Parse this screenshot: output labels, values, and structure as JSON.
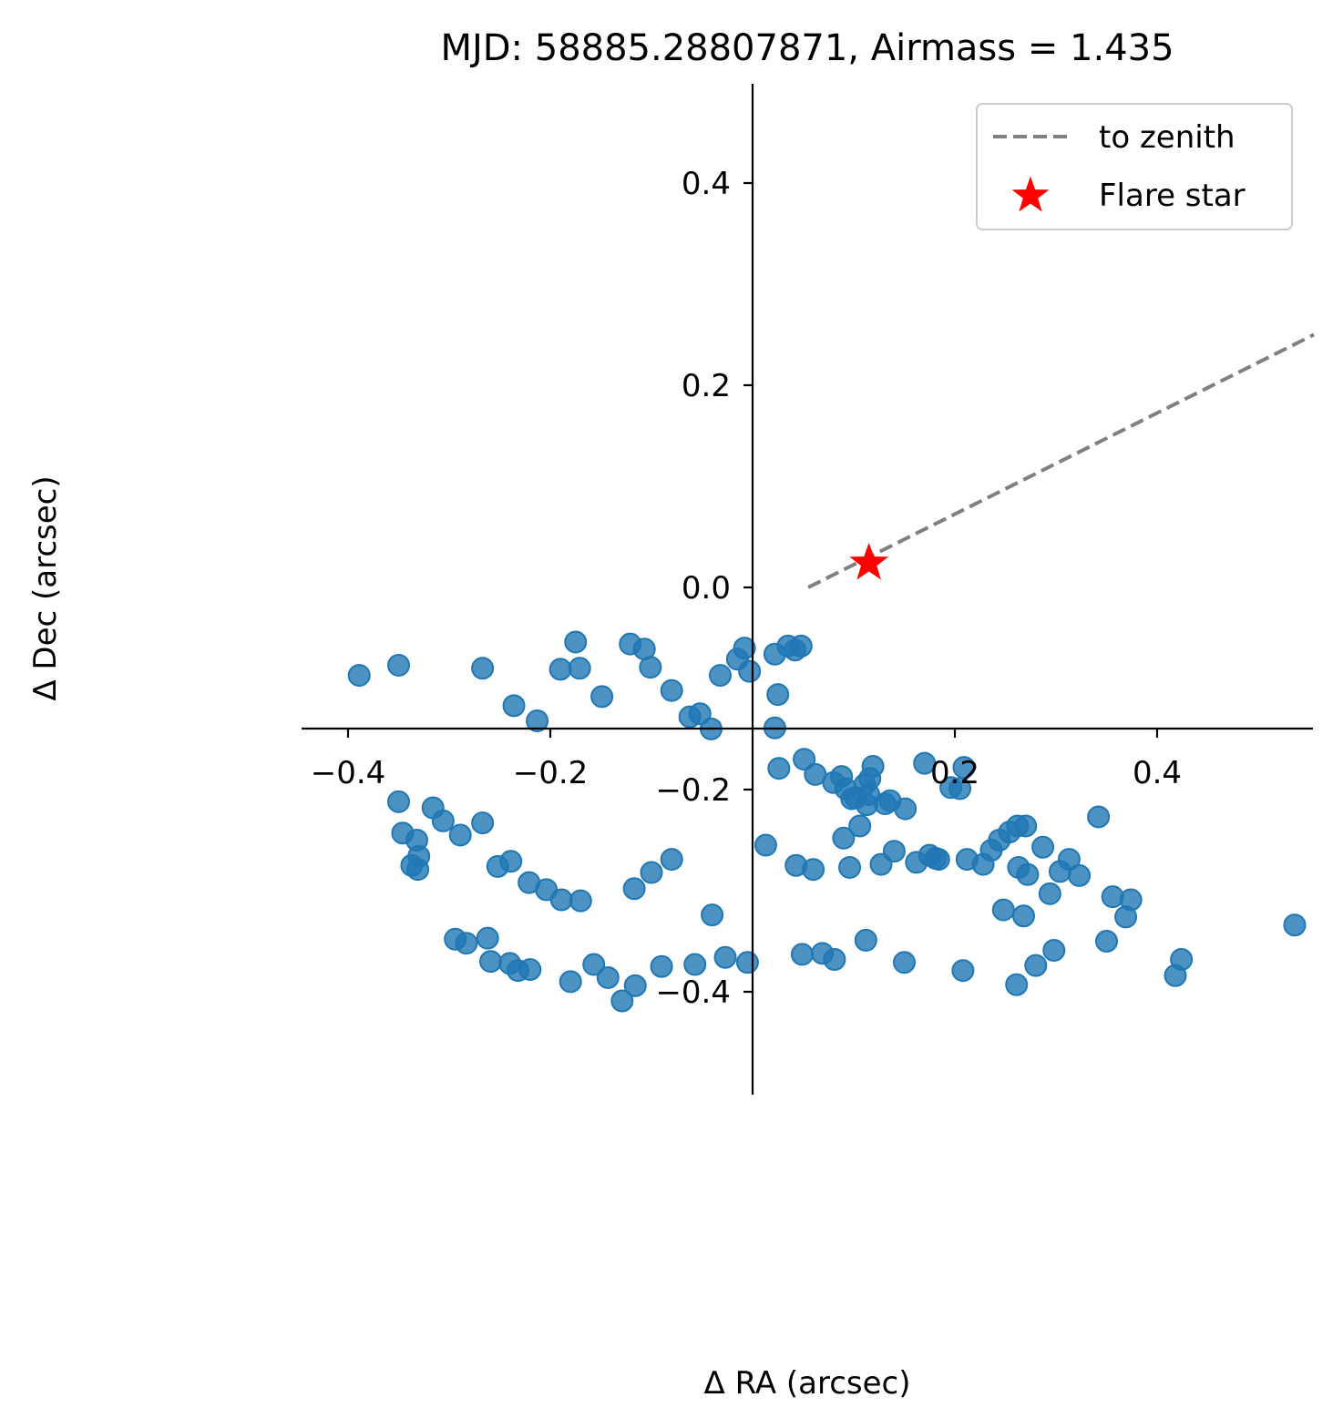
{
  "chart_data": {
    "type": "scatter",
    "title": "MJD: 58885.28807871, Airmass = 1.435",
    "xlabel": "Δ RA (arcsec)",
    "ylabel": "Δ Dec (arcsec)",
    "xlim": [
      -0.5,
      0.5
    ],
    "ylim": [
      -0.5,
      0.5
    ],
    "grid": false,
    "legend_position": "top-right",
    "x_ticks": [
      {
        "value": -0.4,
        "label": "−0.4"
      },
      {
        "value": -0.2,
        "label": "−0.2"
      },
      {
        "value": 0.2,
        "label": "0.2"
      },
      {
        "value": 0.4,
        "label": "0.4"
      }
    ],
    "y_ticks": [
      {
        "value": 0.4,
        "label": "0.4"
      },
      {
        "value": 0.2,
        "label": "0.2"
      },
      {
        "value": 0.0,
        "label": "0.0"
      },
      {
        "value": -0.2,
        "label": "−0.2"
      },
      {
        "value": -0.4,
        "label": "−0.4"
      }
    ],
    "series": [
      {
        "kind": "line",
        "name": "to zenith",
        "color": "#808080",
        "style": "dashed",
        "x": [
          0.055,
          0.555
        ],
        "y": [
          0.0,
          0.25
        ]
      },
      {
        "kind": "marker",
        "name": "Flare star",
        "color": "#ff0000",
        "marker": "star",
        "x": [
          0.115
        ],
        "y": [
          0.024
        ]
      },
      {
        "kind": "scatter",
        "color": "#1f77b4",
        "marker": "circle",
        "points": [
          [
            -0.389,
            -0.087
          ],
          [
            -0.35,
            -0.077
          ],
          [
            -0.267,
            -0.08
          ],
          [
            -0.236,
            -0.117
          ],
          [
            -0.213,
            -0.132
          ],
          [
            -0.19,
            -0.081
          ],
          [
            -0.175,
            -0.054
          ],
          [
            -0.171,
            -0.08
          ],
          [
            -0.149,
            -0.108
          ],
          [
            -0.121,
            -0.056
          ],
          [
            -0.107,
            -0.061
          ],
          [
            -0.101,
            -0.079
          ],
          [
            -0.08,
            -0.102
          ],
          [
            -0.062,
            -0.128
          ],
          [
            -0.052,
            -0.125
          ],
          [
            -0.041,
            -0.14
          ],
          [
            -0.032,
            -0.087
          ],
          [
            -0.015,
            -0.071
          ],
          [
            -0.008,
            -0.06
          ],
          [
            -0.003,
            -0.083
          ],
          [
            0.022,
            -0.066
          ],
          [
            0.035,
            -0.058
          ],
          [
            0.048,
            -0.058
          ],
          [
            0.025,
            -0.106
          ],
          [
            0.022,
            -0.139
          ],
          [
            0.026,
            -0.179
          ],
          [
            0.042,
            -0.062
          ],
          [
            0.051,
            -0.17
          ],
          [
            0.062,
            -0.185
          ],
          [
            0.08,
            -0.193
          ],
          [
            0.088,
            -0.187
          ],
          [
            0.092,
            -0.199
          ],
          [
            0.098,
            -0.209
          ],
          [
            0.102,
            -0.208
          ],
          [
            0.09,
            -0.248
          ],
          [
            0.106,
            -0.236
          ],
          [
            0.111,
            -0.195
          ],
          [
            0.115,
            -0.205
          ],
          [
            0.113,
            -0.215
          ],
          [
            0.116,
            -0.189
          ],
          [
            0.119,
            -0.177
          ],
          [
            0.131,
            -0.214
          ],
          [
            0.14,
            -0.261
          ],
          [
            0.136,
            -0.211
          ],
          [
            0.151,
            -0.219
          ],
          [
            0.17,
            -0.174
          ],
          [
            0.196,
            -0.198
          ],
          [
            0.205,
            -0.199
          ],
          [
            0.209,
            -0.178
          ],
          [
            0.228,
            -0.274
          ],
          [
            0.244,
            -0.25
          ],
          [
            0.254,
            -0.242
          ],
          [
            0.262,
            -0.236
          ],
          [
            0.27,
            -0.236
          ],
          [
            0.287,
            -0.257
          ],
          [
            0.313,
            -0.269
          ],
          [
            0.342,
            -0.227
          ],
          [
            0.356,
            -0.306
          ],
          [
            0.369,
            -0.326
          ],
          [
            0.374,
            -0.309
          ],
          [
            -0.346,
            -0.243
          ],
          [
            -0.331,
            -0.279
          ],
          [
            -0.33,
            -0.266
          ],
          [
            -0.337,
            -0.275
          ],
          [
            -0.35,
            -0.212
          ],
          [
            -0.332,
            -0.25
          ],
          [
            -0.316,
            -0.218
          ],
          [
            -0.306,
            -0.231
          ],
          [
            -0.289,
            -0.245
          ],
          [
            -0.267,
            -0.233
          ],
          [
            -0.252,
            -0.276
          ],
          [
            -0.239,
            -0.271
          ],
          [
            -0.221,
            -0.292
          ],
          [
            -0.204,
            -0.299
          ],
          [
            -0.189,
            -0.309
          ],
          [
            -0.17,
            -0.31
          ],
          [
            -0.117,
            -0.298
          ],
          [
            -0.1,
            -0.282
          ],
          [
            -0.08,
            -0.269
          ],
          [
            -0.04,
            -0.324
          ],
          [
            0.013,
            -0.255
          ],
          [
            0.043,
            -0.275
          ],
          [
            0.06,
            -0.279
          ],
          [
            0.096,
            -0.277
          ],
          [
            0.127,
            -0.274
          ],
          [
            0.162,
            -0.272
          ],
          [
            0.175,
            -0.265
          ],
          [
            0.181,
            -0.268
          ],
          [
            0.184,
            -0.269
          ],
          [
            0.212,
            -0.269
          ],
          [
            0.236,
            -0.26
          ],
          [
            0.263,
            -0.277
          ],
          [
            0.272,
            -0.284
          ],
          [
            0.304,
            -0.281
          ],
          [
            0.323,
            -0.285
          ],
          [
            0.294,
            -0.303
          ],
          [
            0.268,
            -0.325
          ],
          [
            0.248,
            -0.319
          ],
          [
            -0.294,
            -0.348
          ],
          [
            -0.283,
            -0.352
          ],
          [
            -0.262,
            -0.347
          ],
          [
            -0.259,
            -0.37
          ],
          [
            -0.24,
            -0.372
          ],
          [
            -0.232,
            -0.379
          ],
          [
            -0.22,
            -0.378
          ],
          [
            -0.18,
            -0.39
          ],
          [
            -0.157,
            -0.373
          ],
          [
            -0.143,
            -0.386
          ],
          [
            -0.129,
            -0.409
          ],
          [
            -0.116,
            -0.394
          ],
          [
            -0.09,
            -0.375
          ],
          [
            -0.057,
            -0.373
          ],
          [
            -0.027,
            -0.366
          ],
          [
            -0.005,
            -0.371
          ],
          [
            0.049,
            -0.363
          ],
          [
            0.069,
            -0.362
          ],
          [
            0.081,
            -0.368
          ],
          [
            0.112,
            -0.349
          ],
          [
            0.15,
            -0.371
          ],
          [
            0.208,
            -0.379
          ],
          [
            0.261,
            -0.393
          ],
          [
            0.28,
            -0.374
          ],
          [
            0.298,
            -0.359
          ],
          [
            0.35,
            -0.35
          ],
          [
            0.418,
            -0.384
          ],
          [
            0.424,
            -0.368
          ],
          [
            0.536,
            -0.334
          ]
        ]
      }
    ]
  }
}
